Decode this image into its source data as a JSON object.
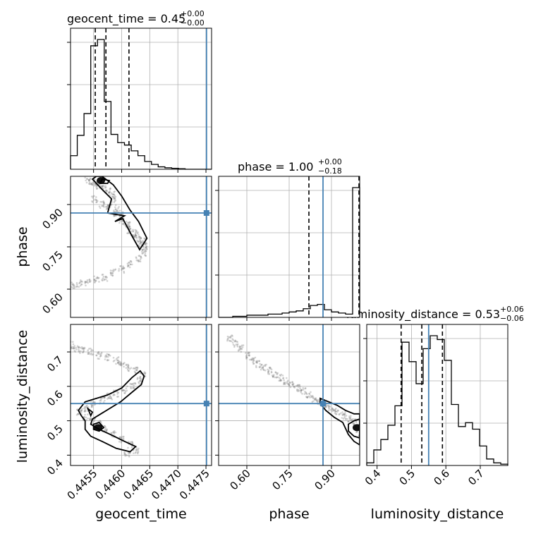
{
  "figure": {
    "type": "corner-plot",
    "parameters": [
      "geocent_time",
      "phase",
      "luminosity_distance"
    ]
  },
  "chart_data": {
    "type": "corner",
    "colors": {
      "truth": "#4682b4",
      "hist": "#000000",
      "scatter": "#808080",
      "grid": "#b0b0b0"
    },
    "truth": {
      "geocent_time": 0.44751,
      "phase": 0.87,
      "luminosity_distance": 0.55
    },
    "titles": {
      "geocent_time": {
        "name": "geocent_time",
        "value": "0.45",
        "plus": "+0.00",
        "minus": "−0.00"
      },
      "phase": {
        "name": "phase",
        "value": "1.00",
        "plus": "+0.00",
        "minus": "−0.18"
      },
      "luminosity_distance": {
        "name": "luminosity_distance",
        "value": "0.53",
        "plus": "+0.06",
        "minus": "−0.06"
      }
    },
    "ranges": {
      "geocent_time": [
        0.44509,
        0.4476
      ],
      "phase": [
        0.5,
        1.0
      ],
      "luminosity_distance": [
        0.37,
        0.78
      ]
    },
    "ticks": {
      "geocent_time": {
        "values": [
          0.4455,
          0.446,
          0.4465,
          0.447,
          0.4475
        ],
        "labels": [
          "0.4455",
          "0.4460",
          "0.4465",
          "0.4470",
          "0.4475"
        ]
      },
      "phase": {
        "values": [
          0.6,
          0.75,
          0.9
        ],
        "labels": [
          "0.60",
          "0.75",
          "0.90"
        ]
      },
      "luminosity_distance": {
        "values": [
          0.4,
          0.5,
          0.6,
          0.7
        ],
        "labels": [
          "0.4",
          "0.5",
          "0.6",
          "0.7"
        ]
      }
    },
    "quantiles": {
      "geocent_time": [
        0.44553,
        0.44572,
        0.44613
      ],
      "phase": [
        0.82,
        1.0
      ],
      "luminosity_distance": [
        0.47,
        0.53,
        0.59
      ]
    },
    "hist1d": {
      "geocent_time": {
        "edges": [
          0.44509,
          0.44521,
          0.44533,
          0.44545,
          0.44557,
          0.44569,
          0.44581,
          0.44593,
          0.44605,
          0.44617,
          0.44629,
          0.44641,
          0.44653,
          0.44665,
          0.44677,
          0.44689,
          0.44701,
          0.44713,
          0.44725,
          0.44737,
          0.44749,
          0.4476
        ],
        "counts": [
          28,
          70,
          115,
          255,
          268,
          140,
          72,
          55,
          50,
          38,
          28,
          16,
          10,
          5,
          3,
          2,
          1,
          0,
          0,
          0,
          0
        ]
      },
      "phase": {
        "edges": [
          0.5,
          0.525,
          0.55,
          0.575,
          0.6,
          0.625,
          0.65,
          0.675,
          0.7,
          0.725,
          0.75,
          0.775,
          0.8,
          0.825,
          0.85,
          0.875,
          0.9,
          0.925,
          0.95,
          0.975,
          1.0
        ],
        "counts": [
          0,
          0,
          1,
          1,
          2,
          2,
          2,
          3,
          3,
          4,
          5,
          6,
          8,
          11,
          12,
          7,
          5,
          4,
          3,
          120
        ]
      },
      "luminosity_distance": {
        "edges": [
          0.37,
          0.3905,
          0.411,
          0.4315,
          0.452,
          0.4725,
          0.493,
          0.5135,
          0.534,
          0.5545,
          0.575,
          0.5955,
          0.616,
          0.6365,
          0.657,
          0.6775,
          0.698,
          0.7185,
          0.739,
          0.7595,
          0.78
        ],
        "counts": [
          2,
          12,
          20,
          31,
          46,
          95,
          80,
          63,
          90,
          100,
          97,
          81,
          47,
          30,
          33,
          28,
          15,
          5,
          2,
          1
        ]
      }
    },
    "points": {
      "phase_vs_geocent_time": [
        [
          0.4454,
          0.985
        ],
        [
          0.44548,
          0.978
        ],
        [
          0.44555,
          0.975
        ],
        [
          0.4456,
          0.968
        ],
        [
          0.4457,
          0.955
        ],
        [
          0.44575,
          0.945
        ],
        [
          0.44585,
          0.935
        ],
        [
          0.44585,
          0.91
        ],
        [
          0.44592,
          0.88
        ],
        [
          0.44598,
          0.86
        ],
        [
          0.4461,
          0.83
        ],
        [
          0.44622,
          0.8
        ],
        [
          0.4463,
          0.78
        ],
        [
          0.44638,
          0.77
        ],
        [
          0.44642,
          0.75
        ],
        [
          0.44552,
          0.92
        ],
        [
          0.44565,
          0.9
        ],
        [
          0.44575,
          0.89
        ],
        [
          0.4459,
          0.87
        ],
        [
          0.446,
          0.84
        ],
        [
          0.44612,
          0.81
        ],
        [
          0.44625,
          0.79
        ],
        [
          0.44634,
          0.76
        ],
        [
          0.4464,
          0.73
        ],
        [
          0.4463,
          0.71
        ],
        [
          0.44615,
          0.69
        ],
        [
          0.446,
          0.67
        ],
        [
          0.44585,
          0.66
        ],
        [
          0.4457,
          0.64
        ],
        [
          0.44555,
          0.635
        ],
        [
          0.4454,
          0.625
        ],
        [
          0.44525,
          0.62
        ],
        [
          0.44512,
          0.615
        ]
      ],
      "distance_vs_geocent_time": [
        [
          0.4451,
          0.72
        ],
        [
          0.4452,
          0.71
        ],
        [
          0.4453,
          0.705
        ],
        [
          0.44545,
          0.7
        ],
        [
          0.4456,
          0.69
        ],
        [
          0.44575,
          0.685
        ],
        [
          0.4459,
          0.675
        ],
        [
          0.446,
          0.665
        ],
        [
          0.44612,
          0.655
        ],
        [
          0.44625,
          0.645
        ],
        [
          0.44638,
          0.635
        ],
        [
          0.44632,
          0.615
        ],
        [
          0.4462,
          0.6
        ],
        [
          0.44605,
          0.59
        ],
        [
          0.4459,
          0.58
        ],
        [
          0.44578,
          0.57
        ],
        [
          0.44565,
          0.56
        ],
        [
          0.4455,
          0.55
        ],
        [
          0.44538,
          0.535
        ],
        [
          0.44525,
          0.525
        ],
        [
          0.44535,
          0.51
        ],
        [
          0.44548,
          0.5
        ],
        [
          0.4456,
          0.49
        ],
        [
          0.4457,
          0.475
        ],
        [
          0.44585,
          0.46
        ],
        [
          0.446,
          0.445
        ],
        [
          0.44615,
          0.43
        ],
        [
          0.44625,
          0.415
        ],
        [
          0.4461,
          0.4
        ]
      ],
      "distance_vs_phase": [
        [
          0.54,
          0.74
        ],
        [
          0.56,
          0.725
        ],
        [
          0.58,
          0.71
        ],
        [
          0.6,
          0.69
        ],
        [
          0.62,
          0.675
        ],
        [
          0.64,
          0.665
        ],
        [
          0.66,
          0.655
        ],
        [
          0.68,
          0.645
        ],
        [
          0.7,
          0.635
        ],
        [
          0.72,
          0.625
        ],
        [
          0.74,
          0.615
        ],
        [
          0.76,
          0.605
        ],
        [
          0.78,
          0.595
        ],
        [
          0.8,
          0.585
        ],
        [
          0.82,
          0.575
        ],
        [
          0.84,
          0.565
        ],
        [
          0.86,
          0.555
        ],
        [
          0.88,
          0.545
        ],
        [
          0.9,
          0.535
        ],
        [
          0.92,
          0.525
        ],
        [
          0.94,
          0.515
        ],
        [
          0.96,
          0.505
        ],
        [
          0.98,
          0.495
        ],
        [
          0.99,
          0.48
        ],
        [
          0.995,
          0.465
        ]
      ]
    },
    "contours": {
      "phase_vs_geocent_time": [
        [
          [
            0.44565,
            1.0
          ],
          [
            0.44585,
            0.97
          ],
          [
            0.446,
            0.93
          ],
          [
            0.44615,
            0.88
          ],
          [
            0.4463,
            0.84
          ],
          [
            0.44645,
            0.78
          ],
          [
            0.44632,
            0.74
          ],
          [
            0.44618,
            0.79
          ],
          [
            0.44602,
            0.85
          ],
          [
            0.44588,
            0.84
          ],
          [
            0.44605,
            0.86
          ],
          [
            0.44575,
            0.87
          ],
          [
            0.44582,
            0.92
          ],
          [
            0.44562,
            0.96
          ],
          [
            0.44548,
            0.99
          ],
          [
            0.44555,
            1.0
          ]
        ],
        [
          [
            0.44565,
            0.99
          ],
          [
            0.44578,
            0.985
          ],
          [
            0.44575,
            0.975
          ],
          [
            0.44562,
            0.975
          ],
          [
            0.44565,
            0.99
          ]
        ]
      ],
      "distance_vs_geocent_time": [
        [
          [
            0.44523,
            0.53
          ],
          [
            0.44535,
            0.555
          ],
          [
            0.44555,
            0.565
          ],
          [
            0.44575,
            0.575
          ],
          [
            0.446,
            0.595
          ],
          [
            0.44618,
            0.625
          ],
          [
            0.44633,
            0.645
          ],
          [
            0.4464,
            0.63
          ],
          [
            0.44635,
            0.605
          ],
          [
            0.4462,
            0.585
          ],
          [
            0.44598,
            0.555
          ],
          [
            0.44578,
            0.535
          ],
          [
            0.44563,
            0.52
          ],
          [
            0.44548,
            0.505
          ],
          [
            0.44545,
            0.49
          ],
          [
            0.4456,
            0.475
          ],
          [
            0.4458,
            0.46
          ],
          [
            0.44605,
            0.44
          ],
          [
            0.44625,
            0.425
          ],
          [
            0.44615,
            0.41
          ],
          [
            0.4459,
            0.42
          ],
          [
            0.44565,
            0.44
          ],
          [
            0.44545,
            0.455
          ],
          [
            0.44535,
            0.475
          ],
          [
            0.44535,
            0.5
          ],
          [
            0.44528,
            0.515
          ],
          [
            0.44523,
            0.53
          ]
        ],
        [
          [
            0.4454,
            0.535
          ],
          [
            0.44548,
            0.525
          ],
          [
            0.44545,
            0.515
          ],
          [
            0.4454,
            0.535
          ]
        ],
        [
          [
            0.4455,
            0.49
          ],
          [
            0.4456,
            0.495
          ],
          [
            0.44568,
            0.48
          ],
          [
            0.4456,
            0.47
          ],
          [
            0.4455,
            0.475
          ],
          [
            0.4455,
            0.49
          ]
        ]
      ],
      "distance_vs_phase": [
        [
          [
            0.86,
            0.565
          ],
          [
            0.89,
            0.555
          ],
          [
            0.92,
            0.545
          ],
          [
            0.95,
            0.53
          ],
          [
            0.98,
            0.52
          ],
          [
            1.0,
            0.52
          ],
          [
            1.0,
            0.43
          ],
          [
            0.98,
            0.44
          ],
          [
            0.96,
            0.46
          ],
          [
            0.94,
            0.495
          ],
          [
            0.91,
            0.51
          ],
          [
            0.88,
            0.53
          ],
          [
            0.86,
            0.55
          ],
          [
            0.86,
            0.565
          ]
        ],
        [
          [
            0.96,
            0.49
          ],
          [
            0.98,
            0.5
          ],
          [
            1.0,
            0.505
          ],
          [
            1.0,
            0.45
          ],
          [
            0.98,
            0.455
          ],
          [
            0.96,
            0.47
          ],
          [
            0.96,
            0.49
          ]
        ]
      ]
    },
    "dark_cores": {
      "phase_vs_geocent_time": [
        [
          0.44563,
          0.985
        ]
      ],
      "distance_vs_geocent_time": [
        [
          0.44558,
          0.48
        ]
      ],
      "distance_vs_phase": [
        [
          0.99,
          0.48
        ]
      ]
    }
  }
}
